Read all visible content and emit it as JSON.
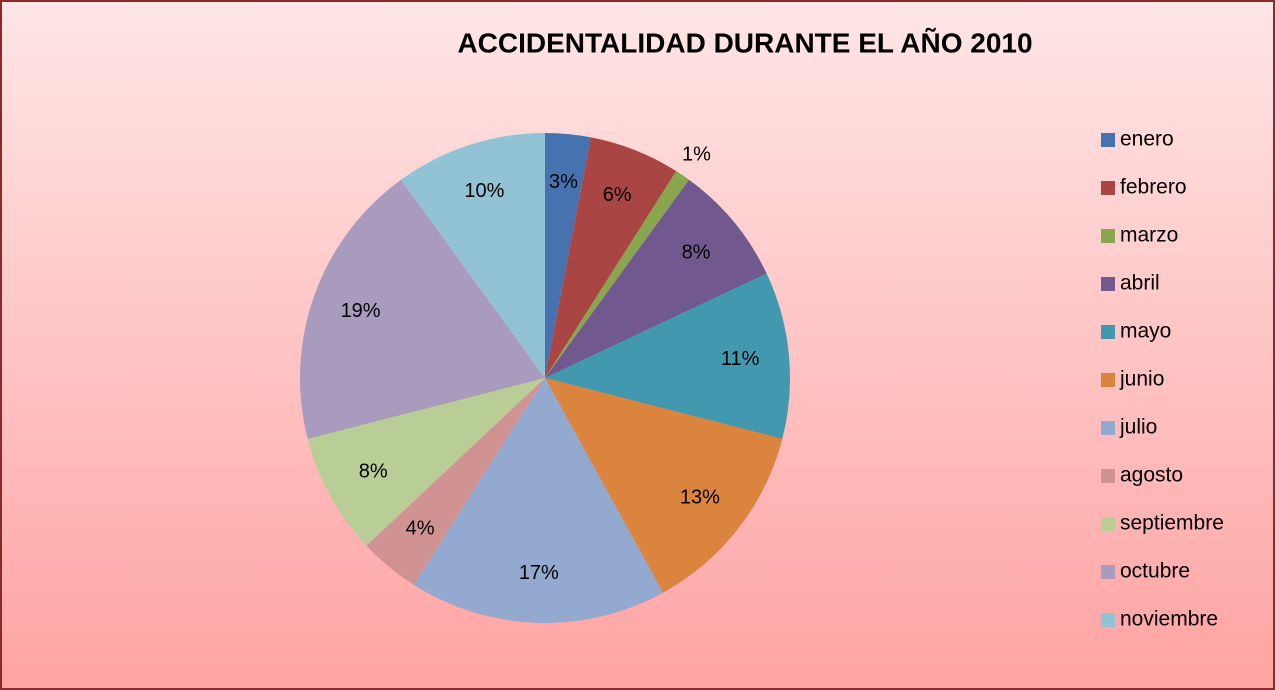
{
  "chart_data": {
    "type": "pie",
    "title": "ACCIDENTALIDAD DURANTE EL AÑO 2010",
    "categories": [
      "enero",
      "febrero",
      "marzo",
      "abril",
      "mayo",
      "junio",
      "julio",
      "agosto",
      "septiembre",
      "octubre",
      "noviembre"
    ],
    "values": [
      3,
      6,
      1,
      8,
      11,
      13,
      17,
      4,
      8,
      19,
      10
    ],
    "value_labels": [
      "3%",
      "6%",
      "1%",
      "8%",
      "11%",
      "13%",
      "17%",
      "4%",
      "8%",
      "19%",
      "10%"
    ],
    "colors": [
      "#4672b0",
      "#a94643",
      "#89a54e",
      "#71588f",
      "#4198af",
      "#db843d",
      "#93a9cf",
      "#d19392",
      "#b9cd96",
      "#a99bbd",
      "#92c3d4"
    ],
    "legend": "right"
  }
}
